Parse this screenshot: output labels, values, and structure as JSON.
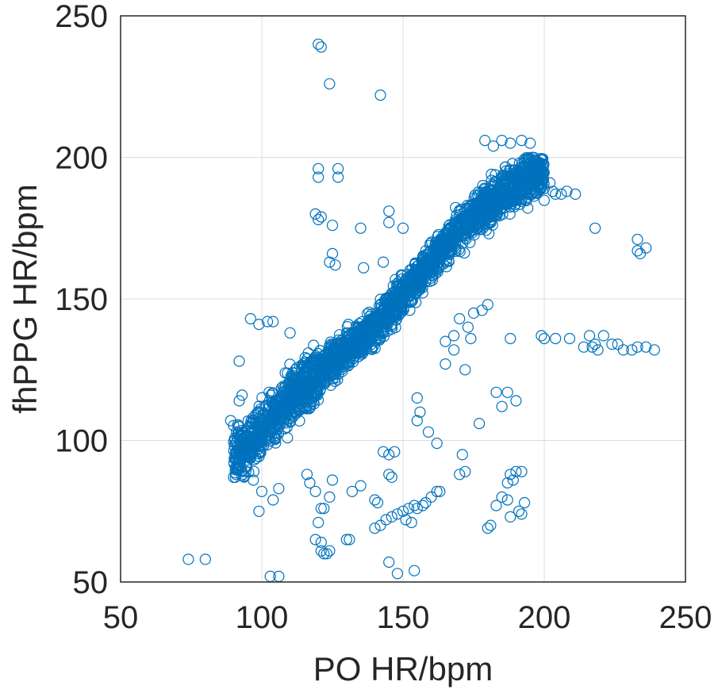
{
  "chart_data": {
    "type": "scatter",
    "title": "",
    "xlabel": "PO HR/bpm",
    "ylabel": "fhPPG HR/bpm",
    "xlim": [
      50,
      250
    ],
    "ylim": [
      50,
      250
    ],
    "xticks": [
      50,
      100,
      150,
      200,
      250
    ],
    "yticks": [
      50,
      100,
      150,
      200,
      250
    ],
    "xtick_labels": [
      "50",
      "100",
      "150",
      "200",
      "250"
    ],
    "ytick_labels": [
      "50",
      "100",
      "150",
      "200",
      "250"
    ],
    "grid": true,
    "legend": "none",
    "marker": "open-circle",
    "color": "#0072BD",
    "series": [
      {
        "dense_band": {
          "description": "dense cloud of points along the identity line",
          "x_range": [
            90,
            200
          ],
          "centerline": [
            [
              95,
              97
            ],
            [
              110,
              115
            ],
            [
              125,
              128
            ],
            [
              140,
              140
            ],
            [
              155,
              157
            ],
            [
              170,
              175
            ],
            [
              185,
              187
            ],
            [
              198,
              195
            ]
          ],
          "spread": 9
        },
        "points": [
          [
            120,
            240
          ],
          [
            121,
            239
          ],
          [
            124,
            226
          ],
          [
            142,
            222
          ],
          [
            120,
            196
          ],
          [
            120,
            193
          ],
          [
            127,
            196
          ],
          [
            127,
            193
          ],
          [
            119,
            180
          ],
          [
            120,
            178
          ],
          [
            121,
            179
          ],
          [
            125,
            176
          ],
          [
            135,
            175
          ],
          [
            145,
            181
          ],
          [
            145,
            177
          ],
          [
            150,
            175
          ],
          [
            125,
            166
          ],
          [
            124,
            163
          ],
          [
            126,
            162
          ],
          [
            136,
            161
          ],
          [
            143,
            163
          ],
          [
            96,
            143
          ],
          [
            99,
            141
          ],
          [
            102,
            142
          ],
          [
            104,
            142
          ],
          [
            110,
            138
          ],
          [
            92,
            128
          ],
          [
            93,
            116
          ],
          [
            92,
            114
          ],
          [
            89,
            107
          ],
          [
            91,
            103
          ],
          [
            90,
            87
          ],
          [
            91,
            91
          ],
          [
            93,
            89
          ],
          [
            97,
            86
          ],
          [
            100,
            82
          ],
          [
            99,
            75
          ],
          [
            104,
            79
          ],
          [
            106,
            83
          ],
          [
            103,
            52
          ],
          [
            106,
            52
          ],
          [
            74,
            58
          ],
          [
            80,
            58
          ],
          [
            116,
            88
          ],
          [
            117,
            85
          ],
          [
            119,
            82
          ],
          [
            121,
            76
          ],
          [
            122,
            76
          ],
          [
            124,
            80
          ],
          [
            125,
            86
          ],
          [
            120,
            71
          ],
          [
            121,
            61
          ],
          [
            122,
            60
          ],
          [
            123,
            60
          ],
          [
            124,
            61
          ],
          [
            121,
            64
          ],
          [
            119,
            65
          ],
          [
            130,
            65
          ],
          [
            131,
            65
          ],
          [
            132,
            82
          ],
          [
            135,
            84
          ],
          [
            140,
            79
          ],
          [
            141,
            78
          ],
          [
            143,
            96
          ],
          [
            145,
            95
          ],
          [
            147,
            96
          ],
          [
            145,
            88
          ],
          [
            146,
            87
          ],
          [
            140,
            69
          ],
          [
            142,
            70
          ],
          [
            144,
            72
          ],
          [
            146,
            73
          ],
          [
            148,
            74
          ],
          [
            150,
            75
          ],
          [
            152,
            76
          ],
          [
            154,
            77
          ],
          [
            155,
            76
          ],
          [
            157,
            77
          ],
          [
            158,
            78
          ],
          [
            160,
            80
          ],
          [
            162,
            82
          ],
          [
            163,
            82
          ],
          [
            145,
            57
          ],
          [
            148,
            53
          ],
          [
            154,
            54
          ],
          [
            151,
            72
          ],
          [
            153,
            71
          ],
          [
            155,
            107
          ],
          [
            155,
            115
          ],
          [
            156,
            110
          ],
          [
            159,
            103
          ],
          [
            162,
            99
          ],
          [
            165,
            127
          ],
          [
            165,
            135
          ],
          [
            168,
            137
          ],
          [
            170,
            143
          ],
          [
            173,
            140
          ],
          [
            174,
            136
          ],
          [
            172,
            125
          ],
          [
            168,
            132
          ],
          [
            171,
            95
          ],
          [
            172,
            89
          ],
          [
            170,
            88
          ],
          [
            175,
            145
          ],
          [
            178,
            146
          ],
          [
            180,
            148
          ],
          [
            177,
            106
          ],
          [
            183,
            117
          ],
          [
            185,
            112
          ],
          [
            187,
            117
          ],
          [
            190,
            114
          ],
          [
            181,
            70
          ],
          [
            180,
            69
          ],
          [
            183,
            77
          ],
          [
            185,
            80
          ],
          [
            187,
            79
          ],
          [
            187,
            85
          ],
          [
            189,
            86
          ],
          [
            188,
            88
          ],
          [
            190,
            89
          ],
          [
            192,
            89
          ],
          [
            188,
            73
          ],
          [
            191,
            75
          ],
          [
            192,
            74
          ],
          [
            193,
            78
          ],
          [
            188,
            136
          ],
          [
            199,
            137
          ],
          [
            200,
            136
          ],
          [
            204,
            136
          ],
          [
            209,
            136
          ],
          [
            214,
            133
          ],
          [
            216,
            137
          ],
          [
            217,
            133
          ],
          [
            218,
            134
          ],
          [
            219,
            132
          ],
          [
            221,
            137
          ],
          [
            224,
            134
          ],
          [
            226,
            134
          ],
          [
            228,
            132
          ],
          [
            231,
            132
          ],
          [
            233,
            133
          ],
          [
            236,
            133
          ],
          [
            239,
            132
          ],
          [
            200,
            189
          ],
          [
            202,
            191
          ],
          [
            203,
            188
          ],
          [
            204,
            187
          ],
          [
            206,
            187
          ],
          [
            208,
            188
          ],
          [
            211,
            187
          ],
          [
            218,
            175
          ],
          [
            233,
            171
          ],
          [
            233,
            167
          ],
          [
            234,
            166
          ],
          [
            236,
            168
          ],
          [
            179,
            206
          ],
          [
            182,
            204
          ],
          [
            185,
            206
          ],
          [
            188,
            205
          ],
          [
            192,
            206
          ],
          [
            195,
            205
          ]
        ]
      }
    ]
  }
}
